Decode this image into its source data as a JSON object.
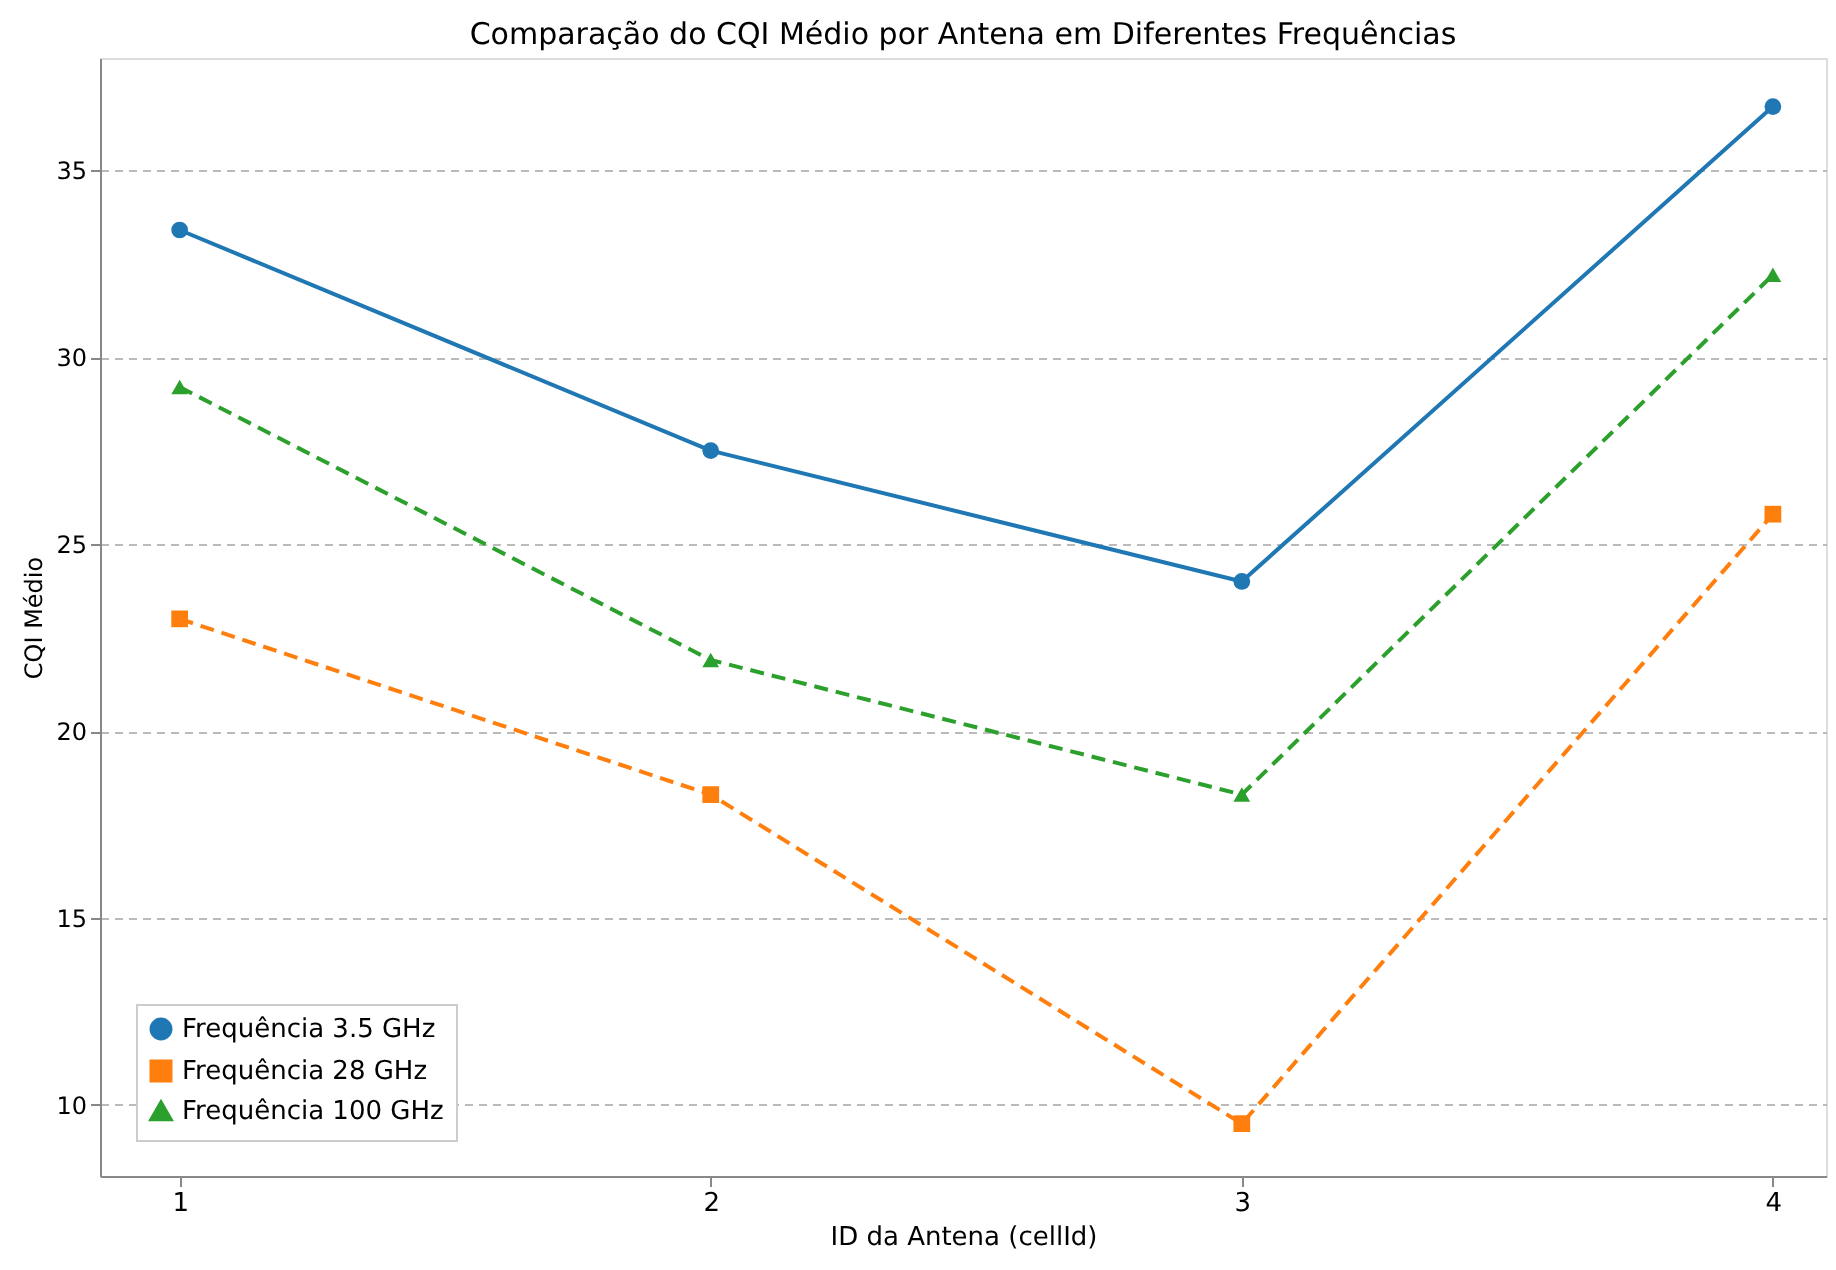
{
  "chart_data": {
    "type": "line",
    "title": "Comparação do CQI Médio por Antena em Diferentes Frequências",
    "xlabel": "ID da Antena (cellId)",
    "ylabel": "CQI Médio",
    "x": [
      1,
      2,
      3,
      4
    ],
    "series": [
      {
        "name": "Frequência 3.5 GHz",
        "color": "#1f77b4",
        "marker": "circle",
        "line_style": "solid",
        "values": [
          33.4,
          27.5,
          24.0,
          36.7
        ]
      },
      {
        "name": "Frequência 28 GHz",
        "color": "#ff7f0e",
        "marker": "square",
        "line_style": "dashed",
        "values": [
          23.0,
          18.3,
          9.5,
          25.8
        ]
      },
      {
        "name": "Frequência 100 GHz",
        "color": "#2ca02c",
        "marker": "triangle",
        "line_style": "dashed",
        "values": [
          29.2,
          21.9,
          18.3,
          32.2
        ]
      }
    ],
    "xlim": [
      0.85,
      4.1
    ],
    "xticks": [
      1,
      2,
      3,
      4
    ],
    "ylim": [
      8.1,
      38.0
    ],
    "yticks": [
      10,
      15,
      20,
      25,
      30,
      35
    ],
    "grid": "y",
    "legend": "bottom left"
  }
}
